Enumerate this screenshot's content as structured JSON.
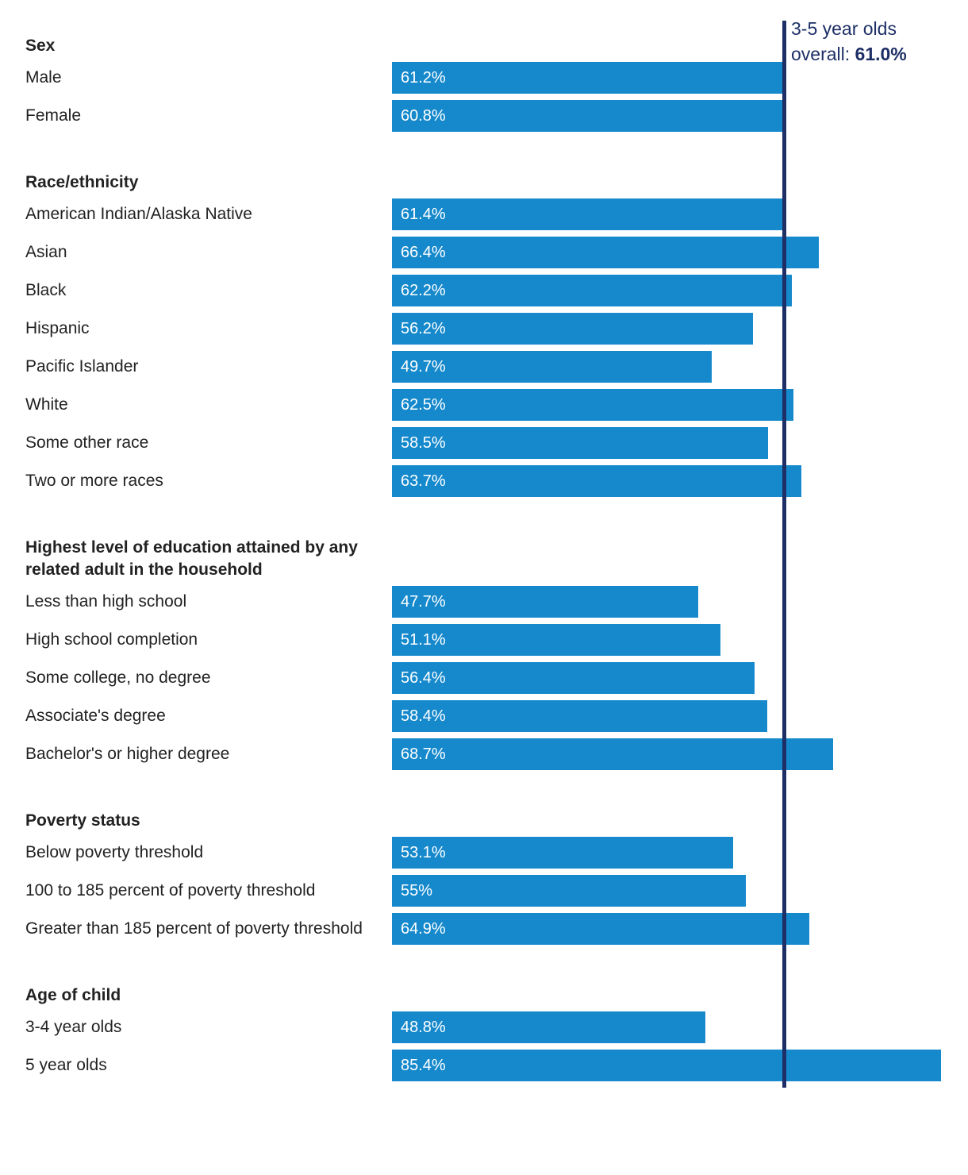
{
  "chart_data": {
    "type": "bar",
    "orientation": "horizontal",
    "colors": {
      "bar": "#1589cc",
      "bar_text": "#ffffff",
      "reference_line": "#1d2f66",
      "label_text": "#222222"
    },
    "reference": {
      "value": 61.0,
      "label_line1": "3-5 year olds",
      "label_prefix": "overall: ",
      "value_label": "61.0%"
    },
    "groups": [
      {
        "title": "Sex",
        "rows": [
          {
            "label": "Male",
            "value": 61.2,
            "value_label": "61.2%"
          },
          {
            "label": "Female",
            "value": 60.8,
            "value_label": "60.8%"
          }
        ]
      },
      {
        "title": "Race/ethnicity",
        "rows": [
          {
            "label": "American Indian/Alaska Native",
            "value": 61.4,
            "value_label": "61.4%"
          },
          {
            "label": "Asian",
            "value": 66.4,
            "value_label": "66.4%"
          },
          {
            "label": "Black",
            "value": 62.2,
            "value_label": "62.2%"
          },
          {
            "label": "Hispanic",
            "value": 56.2,
            "value_label": "56.2%"
          },
          {
            "label": "Pacific Islander",
            "value": 49.7,
            "value_label": "49.7%"
          },
          {
            "label": "White",
            "value": 62.5,
            "value_label": "62.5%"
          },
          {
            "label": "Some other race",
            "value": 58.5,
            "value_label": "58.5%"
          },
          {
            "label": "Two or more races",
            "value": 63.7,
            "value_label": "63.7%"
          }
        ]
      },
      {
        "title": "Highest level of education attained by any related adult in the household",
        "rows": [
          {
            "label": "Less than high school",
            "value": 47.7,
            "value_label": "47.7%"
          },
          {
            "label": "High school completion",
            "value": 51.1,
            "value_label": "51.1%"
          },
          {
            "label": "Some college, no degree",
            "value": 56.4,
            "value_label": "56.4%"
          },
          {
            "label": "Associate's degree",
            "value": 58.4,
            "value_label": "58.4%"
          },
          {
            "label": "Bachelor's or higher degree",
            "value": 68.7,
            "value_label": "68.7%"
          }
        ]
      },
      {
        "title": "Poverty status",
        "rows": [
          {
            "label": "Below poverty threshold",
            "value": 53.1,
            "value_label": "53.1%"
          },
          {
            "label": "100 to 185 percent of poverty threshold",
            "value": 55.0,
            "value_label": "55%"
          },
          {
            "label": "Greater than 185 percent of poverty threshold",
            "value": 64.9,
            "value_label": "64.9%"
          }
        ]
      },
      {
        "title": "Age of child",
        "rows": [
          {
            "label": "3-4 year olds",
            "value": 48.8,
            "value_label": "48.8%"
          },
          {
            "label": "5 year olds",
            "value": 85.4,
            "value_label": "85.4%"
          }
        ]
      }
    ]
  }
}
